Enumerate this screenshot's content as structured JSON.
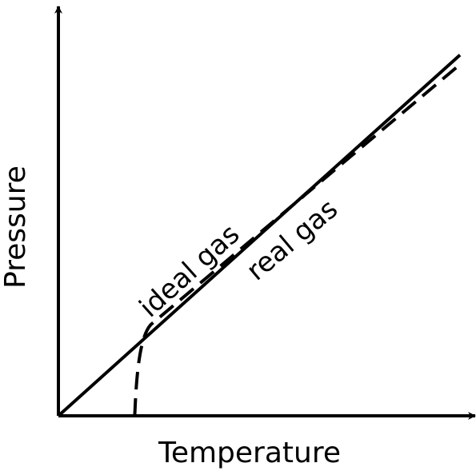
{
  "chart_data": {
    "type": "line",
    "title": "",
    "xlabel": "Temperature",
    "ylabel": "Pressure",
    "xlim": [
      0,
      10
    ],
    "ylim": [
      0,
      10
    ],
    "grid": false,
    "ticks": false,
    "series": [
      {
        "name": "ideal gas",
        "style": "solid",
        "x": [
          0,
          10
        ],
        "y": [
          0,
          9.5
        ]
      },
      {
        "name": "real gas",
        "style": "dashed",
        "x": [
          1.9,
          1.95,
          2.05,
          2.3,
          10
        ],
        "y": [
          0,
          1.3,
          2.1,
          2.4,
          9.25
        ]
      }
    ],
    "annotations": [
      {
        "text": "ideal gas",
        "series": "ideal gas",
        "placement": "above line, rotated along slope"
      },
      {
        "text": "real gas",
        "series": "real gas",
        "placement": "below line, rotated along slope"
      }
    ]
  }
}
